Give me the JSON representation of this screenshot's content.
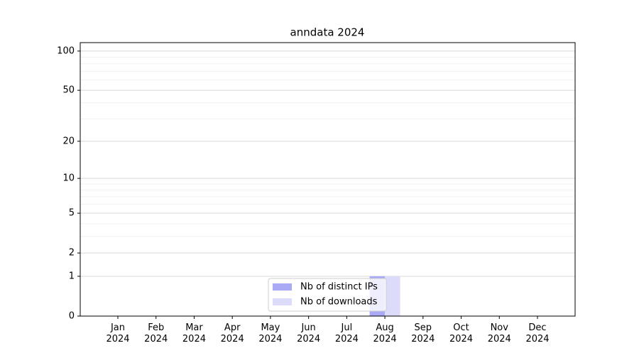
{
  "chart_data": {
    "type": "bar",
    "title": "anndata 2024",
    "categories": [
      "Jan 2024",
      "Feb 2024",
      "Mar 2024",
      "Apr 2024",
      "May 2024",
      "Jun 2024",
      "Jul 2024",
      "Aug 2024",
      "Sep 2024",
      "Oct 2024",
      "Nov 2024",
      "Dec 2024"
    ],
    "series": [
      {
        "name": "Nb of distinct IPs",
        "color": "#a9a9f5",
        "values": [
          0,
          0,
          0,
          0,
          0,
          0,
          0,
          1,
          0,
          0,
          0,
          0
        ]
      },
      {
        "name": "Nb of downloads",
        "color": "#dcdcfa",
        "values": [
          0,
          0,
          0,
          0,
          0,
          0,
          0,
          1,
          0,
          0,
          0,
          0
        ]
      }
    ],
    "y_scale": "log1p",
    "ylim": [
      0,
      116
    ],
    "yticks": [
      0,
      1,
      2,
      5,
      10,
      20,
      50,
      100
    ],
    "minor_yticks": [
      3,
      4,
      6,
      7,
      8,
      9,
      30,
      40,
      60,
      70,
      80,
      90
    ],
    "grid": true,
    "legend": "lower center"
  }
}
